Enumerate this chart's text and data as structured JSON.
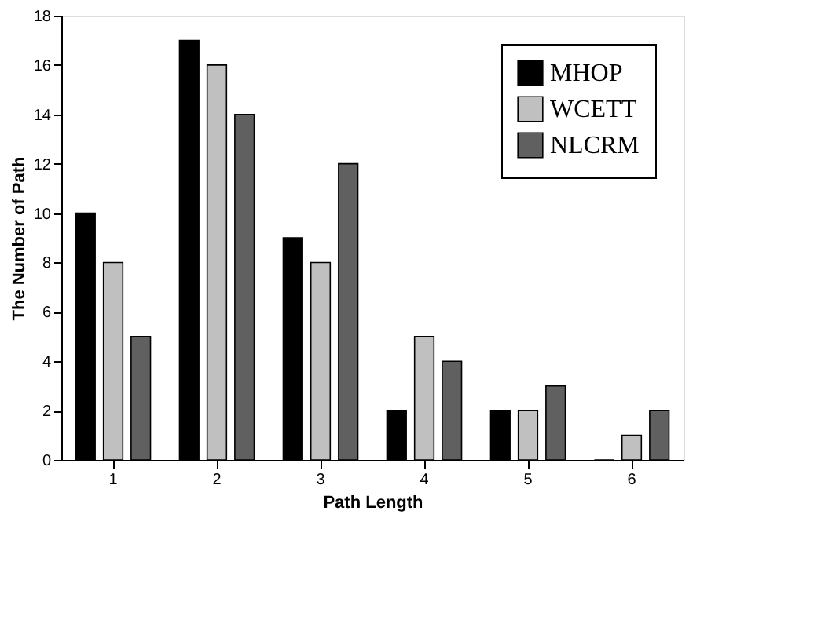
{
  "chart_data": {
    "type": "bar",
    "xlabel": "Path Length",
    "ylabel": "The Number of Path",
    "categories": [
      "1",
      "2",
      "3",
      "4",
      "5",
      "6"
    ],
    "series": [
      {
        "name": "MHOP",
        "color": "#000000",
        "values": [
          10,
          17,
          9,
          2,
          2,
          0
        ]
      },
      {
        "name": "WCETT",
        "color": "#c0c0c0",
        "values": [
          8,
          16,
          8,
          5,
          2,
          1
        ]
      },
      {
        "name": "NLCRM",
        "color": "#606060",
        "values": [
          5,
          14,
          12,
          4,
          3,
          2
        ]
      }
    ],
    "ylim": [
      0,
      18
    ],
    "yticks": [
      0,
      2,
      4,
      6,
      8,
      10,
      12,
      14,
      16,
      18
    ],
    "grid": false,
    "legend": "top right"
  }
}
